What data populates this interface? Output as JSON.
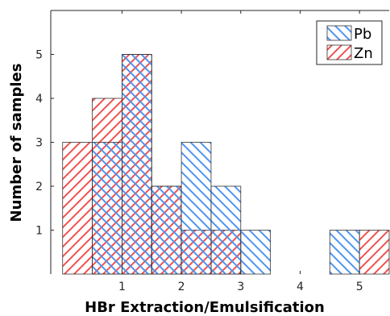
{
  "chart_data": {
    "type": "bar",
    "title": "",
    "xlabel": "HBr Extraction/Emulsification",
    "ylabel": "Number of samples",
    "xlim": [
      -0.2,
      5.5
    ],
    "ylim": [
      0,
      6
    ],
    "xticks": [
      1,
      2,
      3,
      4,
      5
    ],
    "yticks": [
      1,
      2,
      3,
      4,
      5
    ],
    "bin_width": 0.5,
    "grid": false,
    "legend_position": "top-right",
    "series": [
      {
        "name": "Pb",
        "color": "#4d94f0",
        "hatch": "backslash",
        "bin_starts": [
          0.5,
          1.0,
          1.5,
          2.0,
          2.5,
          3.0,
          4.5
        ],
        "values": [
          3,
          5,
          2,
          3,
          2,
          1,
          1
        ]
      },
      {
        "name": "Zn",
        "color": "#f05050",
        "hatch": "slash",
        "bin_starts": [
          0.0,
          0.5,
          1.0,
          1.5,
          2.0,
          2.5,
          5.0
        ],
        "values": [
          3,
          4,
          5,
          2,
          1,
          1,
          1
        ]
      }
    ]
  }
}
